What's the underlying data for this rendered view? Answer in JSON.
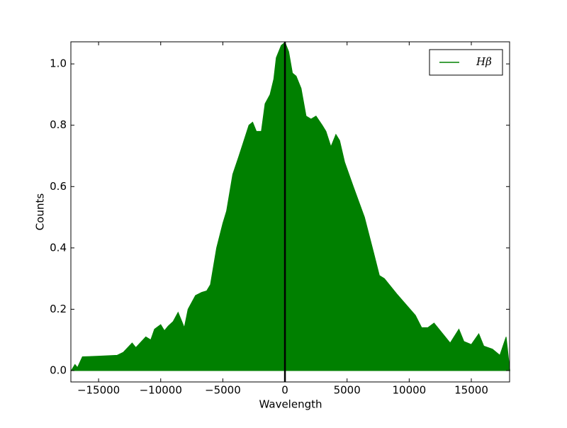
{
  "chart_data": {
    "type": "area",
    "xlabel": "Wavelength",
    "ylabel": "Counts",
    "x": [
      -17200,
      -16900,
      -16700,
      -16300,
      -15000,
      -13500,
      -13000,
      -12300,
      -12000,
      -11200,
      -10800,
      -10500,
      -10000,
      -9700,
      -9400,
      -9000,
      -8600,
      -8300,
      -8100,
      -7800,
      -7200,
      -6700,
      -6300,
      -6000,
      -5500,
      -5000,
      -4700,
      -4200,
      -3700,
      -3300,
      -2900,
      -2600,
      -2300,
      -1900,
      -1600,
      -1200,
      -900,
      -700,
      -300,
      0,
      300,
      600,
      900,
      1300,
      1700,
      2100,
      2500,
      3000,
      3300,
      3700,
      4100,
      4400,
      4800,
      5500,
      6400,
      7100,
      7600,
      8000,
      9000,
      10500,
      11000,
      11500,
      12000,
      12700,
      13300,
      14000,
      14400,
      15000,
      15600,
      16000,
      16700,
      17300,
      17800,
      18100
    ],
    "series": [
      {
        "name": "Hβ",
        "color": "#008000",
        "values": [
          0.0,
          0.02,
          0.01,
          0.045,
          0.047,
          0.05,
          0.06,
          0.09,
          0.075,
          0.11,
          0.1,
          0.135,
          0.15,
          0.13,
          0.145,
          0.16,
          0.19,
          0.16,
          0.14,
          0.2,
          0.245,
          0.255,
          0.26,
          0.28,
          0.4,
          0.48,
          0.52,
          0.64,
          0.7,
          0.75,
          0.8,
          0.81,
          0.78,
          0.78,
          0.87,
          0.9,
          0.95,
          1.02,
          1.06,
          1.07,
          1.04,
          0.97,
          0.96,
          0.92,
          0.83,
          0.82,
          0.83,
          0.8,
          0.78,
          0.73,
          0.77,
          0.75,
          0.68,
          0.6,
          0.5,
          0.39,
          0.31,
          0.3,
          0.25,
          0.18,
          0.14,
          0.14,
          0.155,
          0.12,
          0.09,
          0.135,
          0.095,
          0.085,
          0.12,
          0.08,
          0.07,
          0.05,
          0.11,
          0.0
        ]
      }
    ],
    "vline": {
      "x": 0,
      "color": "#000000"
    },
    "xlim": [
      -17230,
      18080
    ],
    "ylim": [
      -0.037,
      1.072
    ],
    "xticks": [
      {
        "value": -15000,
        "label": "−15000"
      },
      {
        "value": -10000,
        "label": "−10000"
      },
      {
        "value": -5000,
        "label": "−5000"
      },
      0,
      5000,
      10000,
      15000
    ],
    "yticks": [
      {
        "value": 0,
        "label": "0.0"
      },
      0.2,
      0.4,
      0.6,
      0.8,
      {
        "value": 1,
        "label": "1.0"
      }
    ],
    "legend": "upper right"
  }
}
